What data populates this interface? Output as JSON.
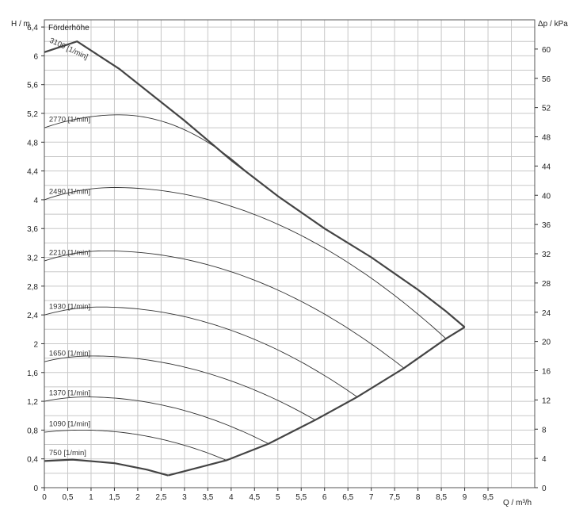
{
  "chart_data": {
    "type": "line",
    "title": "Förderhöhe",
    "left_axis_label": "H / m",
    "right_axis_label": "Δp / kPa",
    "x_axis_label": "Q / m³/h",
    "xlim": [
      0,
      10.5
    ],
    "ylim": [
      0,
      6.5
    ],
    "right_ylim": [
      0,
      64
    ],
    "grid": true,
    "x_ticks": [
      0,
      0.5,
      1,
      1.5,
      2,
      2.5,
      3,
      3.5,
      4,
      4.5,
      5,
      5.5,
      6,
      6.5,
      7,
      7.5,
      8,
      8.5,
      9,
      9.5
    ],
    "x_tick_labels": [
      "0",
      "0,5",
      "1",
      "1,5",
      "2",
      "2,5",
      "3",
      "3,5",
      "4",
      "4,5",
      "5",
      "5,5",
      "6",
      "6,5",
      "7",
      "7,5",
      "8",
      "8,5",
      "9",
      "9,5"
    ],
    "y_ticks": [
      0,
      0.4,
      0.8,
      1.2,
      1.6,
      2,
      2.4,
      2.8,
      3.2,
      3.6,
      4,
      4.4,
      4.8,
      5.2,
      5.6,
      6,
      6.4
    ],
    "y_tick_labels": [
      "0",
      "0,4",
      "0,8",
      "1,2",
      "1,6",
      "2",
      "2,4",
      "2,8",
      "3,2",
      "3,6",
      "4",
      "4,4",
      "4,8",
      "5,2",
      "5,6",
      "6",
      "6,4"
    ],
    "right_ticks": [
      0,
      4,
      8,
      12,
      16,
      20,
      24,
      28,
      32,
      36,
      40,
      44,
      48,
      52,
      56,
      60
    ],
    "right_tick_labels": [
      "0",
      "4",
      "8",
      "12",
      "16",
      "20",
      "24",
      "28",
      "32",
      "36",
      "40",
      "44",
      "48",
      "52",
      "56",
      "60"
    ],
    "series": [
      {
        "name": "3100 [1/min]",
        "label_text": "3100 [1/min]",
        "H0": 6.05,
        "qpeak": 0.7,
        "hpeak": 6.2,
        "qend": 0.7,
        "bold": true
      },
      {
        "name": "2770 [1/min]",
        "label_text": "2770 [1/min]",
        "H0": 5.0,
        "qpeak": 1.6,
        "hpeak": 5.18,
        "qend": 4.4,
        "bold": false
      },
      {
        "name": "2490 [1/min]",
        "label_text": "2490 [1/min]",
        "H0": 4.0,
        "qpeak": 1.5,
        "hpeak": 4.17,
        "qend": 8.6,
        "bold": false
      },
      {
        "name": "2210 [1/min]",
        "label_text": "2210 [1/min]",
        "H0": 3.15,
        "qpeak": 1.3,
        "hpeak": 3.29,
        "qend": 7.7,
        "bold": false
      },
      {
        "name": "1930 [1/min]",
        "label_text": "1930 [1/min]",
        "H0": 2.4,
        "qpeak": 1.2,
        "hpeak": 2.51,
        "qend": 6.7,
        "bold": false
      },
      {
        "name": "1650 [1/min]",
        "label_text": "1650 [1/min]",
        "H0": 1.75,
        "qpeak": 1.0,
        "hpeak": 1.83,
        "qend": 5.8,
        "bold": false
      },
      {
        "name": "1370 [1/min]",
        "label_text": "1370 [1/min]",
        "H0": 1.2,
        "qpeak": 0.9,
        "hpeak": 1.26,
        "qend": 4.8,
        "bold": false
      },
      {
        "name": "1090 [1/min]",
        "label_text": "1090 [1/min]",
        "H0": 0.77,
        "qpeak": 0.8,
        "hpeak": 0.8,
        "qend": 3.9,
        "bold": false
      },
      {
        "name": "750 [1/min]",
        "label_text": "750 [1/min]",
        "H0": 0.37,
        "qpeak": 0.6,
        "hpeak": 0.39,
        "qend": 2.65,
        "bold": true
      }
    ],
    "max_curve": [
      {
        "x": 0,
        "y": 6.05
      },
      {
        "x": 0.7,
        "y": 6.2
      },
      {
        "x": 1.6,
        "y": 5.82
      },
      {
        "x": 3.0,
        "y": 5.1
      },
      {
        "x": 4.0,
        "y": 4.55
      },
      {
        "x": 5.0,
        "y": 4.05
      },
      {
        "x": 6.0,
        "y": 3.6
      },
      {
        "x": 7.0,
        "y": 3.2
      },
      {
        "x": 8.0,
        "y": 2.75
      },
      {
        "x": 8.6,
        "y": 2.45
      },
      {
        "x": 9.0,
        "y": 2.23
      }
    ],
    "min_curve": [
      {
        "x": 0,
        "y": 0.37
      },
      {
        "x": 0.6,
        "y": 0.39
      },
      {
        "x": 1.5,
        "y": 0.34
      },
      {
        "x": 2.2,
        "y": 0.25
      },
      {
        "x": 2.65,
        "y": 0.17
      }
    ],
    "system_curve": [
      {
        "x": 2.65,
        "y": 0.17
      },
      {
        "x": 3.9,
        "y": 0.38
      },
      {
        "x": 4.8,
        "y": 0.61
      },
      {
        "x": 5.8,
        "y": 0.94
      },
      {
        "x": 6.7,
        "y": 1.26
      },
      {
        "x": 7.7,
        "y": 1.66
      },
      {
        "x": 8.6,
        "y": 2.07
      },
      {
        "x": 9.0,
        "y": 2.23
      }
    ]
  }
}
